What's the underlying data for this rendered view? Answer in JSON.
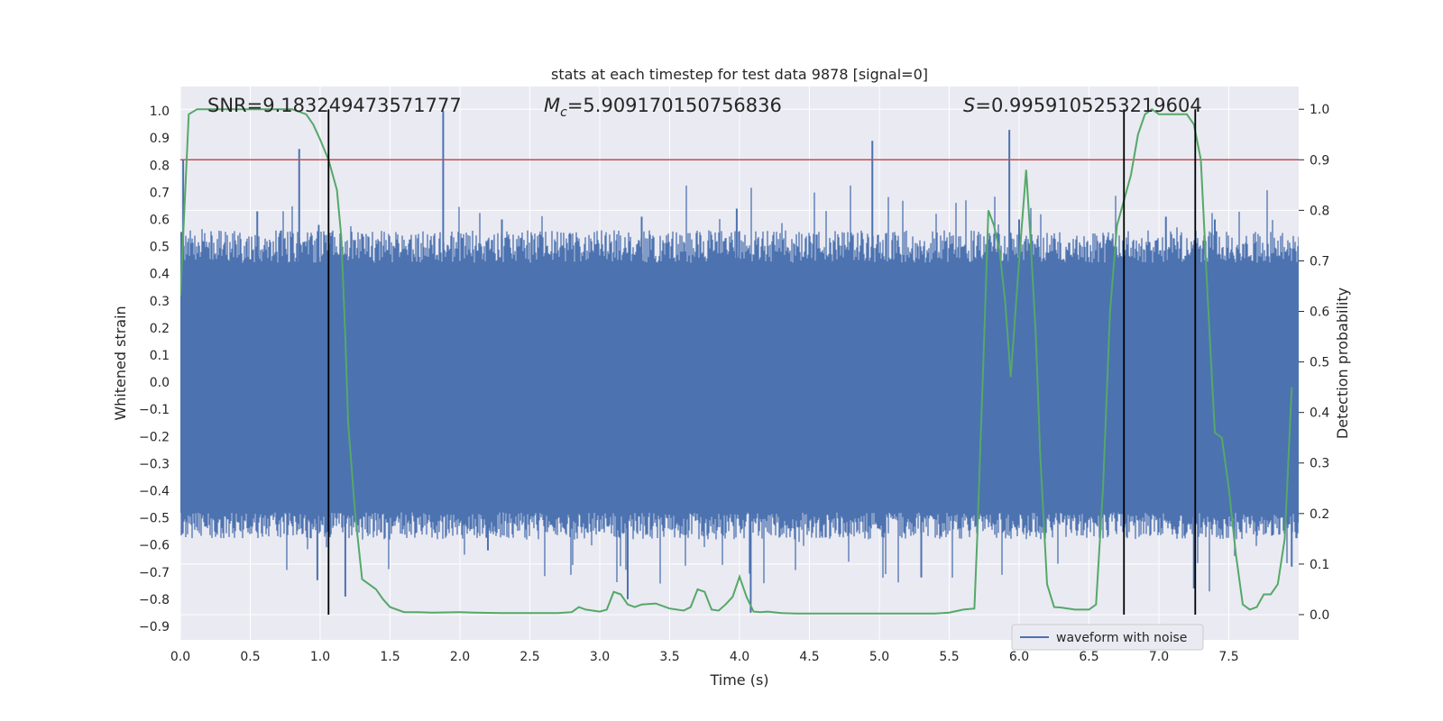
{
  "chart_data": {
    "type": "line",
    "title": "stats at each timestep for test data 9878 [signal=0]",
    "xlabel": "Time (s)",
    "ylabel": "Whitened strain",
    "ylabel_right": "Detection probability",
    "xlim": [
      0.0,
      8.0
    ],
    "ylim": [
      -0.95,
      1.09
    ],
    "ylim_right": [
      -0.05,
      1.045
    ],
    "x_ticks": [
      "0.0",
      "0.5",
      "1.0",
      "1.5",
      "2.0",
      "2.5",
      "3.0",
      "3.5",
      "4.0",
      "4.5",
      "5.0",
      "5.5",
      "6.0",
      "6.5",
      "7.0",
      "7.5"
    ],
    "y_ticks": [
      "1.0",
      "0.9",
      "0.8",
      "0.7",
      "0.6",
      "0.5",
      "0.4",
      "0.3",
      "0.2",
      "0.1",
      "0.0",
      "-0.1",
      "-0.2",
      "-0.3",
      "-0.4",
      "-0.5",
      "-0.6",
      "-0.7",
      "-0.8",
      "-0.9"
    ],
    "y_ticks_right": [
      "1.0",
      "0.9",
      "0.8",
      "0.7",
      "0.6",
      "0.5",
      "0.4",
      "0.3",
      "0.2",
      "0.1",
      "0.0"
    ],
    "annotations": {
      "snr": "SNR=9.183249473571777",
      "mc_symbol": "M",
      "mc_sub": "c",
      "mc_value": "=5.909170150756836",
      "s_symbol": "S",
      "s_value": "=0.9959105253219604"
    },
    "legend": {
      "label": "waveform with noise",
      "loc": "lower right"
    },
    "grid": true,
    "threshold_y": 0.9,
    "markers_x": [
      1.06,
      6.75,
      7.26
    ],
    "series": [
      {
        "name": "waveform with noise",
        "axis": "left",
        "style": "dense-noise",
        "envelope": 0.44,
        "peaks": [
          [
            0.02,
            0.82
          ],
          [
            0.55,
            0.63
          ],
          [
            0.85,
            0.86
          ],
          [
            0.99,
            0.58
          ],
          [
            1.88,
            1.0
          ],
          [
            2.3,
            0.6
          ],
          [
            3.3,
            0.61
          ],
          [
            3.98,
            0.64
          ],
          [
            4.95,
            0.89
          ],
          [
            5.93,
            0.93
          ],
          [
            6.0,
            0.6
          ],
          [
            7.05,
            0.61
          ],
          [
            7.4,
            0.6
          ],
          [
            0.98,
            -0.73
          ],
          [
            1.18,
            -0.79
          ],
          [
            2.2,
            -0.62
          ],
          [
            3.2,
            -0.8
          ],
          [
            4.08,
            -0.85
          ],
          [
            5.3,
            -0.72
          ],
          [
            7.25,
            -0.76
          ],
          [
            7.95,
            -0.68
          ]
        ]
      },
      {
        "name": "",
        "axis": "right",
        "color": "#55a868",
        "x": [
          0.0,
          0.06,
          0.12,
          0.2,
          0.3,
          0.4,
          0.5,
          0.6,
          0.7,
          0.8,
          0.9,
          0.95,
          1.0,
          1.06,
          1.1,
          1.12,
          1.15,
          1.18,
          1.2,
          1.25,
          1.3,
          1.35,
          1.4,
          1.45,
          1.5,
          1.6,
          1.7,
          1.8,
          2.0,
          2.1,
          2.3,
          2.5,
          2.7,
          2.8,
          2.85,
          2.9,
          2.95,
          3.0,
          3.05,
          3.1,
          3.15,
          3.2,
          3.25,
          3.3,
          3.4,
          3.5,
          3.6,
          3.65,
          3.7,
          3.75,
          3.8,
          3.85,
          3.9,
          3.95,
          4.0,
          4.05,
          4.1,
          4.15,
          4.2,
          4.3,
          4.4,
          4.6,
          4.8,
          5.0,
          5.2,
          5.4,
          5.5,
          5.6,
          5.68,
          5.7,
          5.75,
          5.78,
          5.82,
          5.86,
          5.9,
          5.94,
          6.0,
          6.05,
          6.08,
          6.12,
          6.15,
          6.2,
          6.25,
          6.3,
          6.4,
          6.5,
          6.55,
          6.6,
          6.65,
          6.7,
          6.75,
          6.8,
          6.85,
          6.9,
          6.95,
          7.0,
          7.1,
          7.2,
          7.25,
          7.3,
          7.35,
          7.4,
          7.45,
          7.5,
          7.55,
          7.6,
          7.65,
          7.7,
          7.75,
          7.8,
          7.85,
          7.9,
          7.95
        ],
        "y": [
          0.63,
          0.99,
          1.0,
          1.0,
          1.0,
          1.0,
          1.0,
          1.0,
          1.0,
          1.0,
          0.99,
          0.97,
          0.94,
          0.9,
          0.86,
          0.84,
          0.75,
          0.55,
          0.38,
          0.2,
          0.07,
          0.06,
          0.05,
          0.03,
          0.015,
          0.005,
          0.005,
          0.004,
          0.005,
          0.004,
          0.003,
          0.003,
          0.003,
          0.005,
          0.015,
          0.01,
          0.008,
          0.006,
          0.01,
          0.045,
          0.04,
          0.02,
          0.015,
          0.02,
          0.022,
          0.012,
          0.008,
          0.015,
          0.05,
          0.045,
          0.01,
          0.008,
          0.02,
          0.035,
          0.075,
          0.035,
          0.006,
          0.005,
          0.006,
          0.003,
          0.002,
          0.002,
          0.002,
          0.002,
          0.002,
          0.002,
          0.004,
          0.01,
          0.012,
          0.15,
          0.55,
          0.8,
          0.77,
          0.72,
          0.62,
          0.47,
          0.7,
          0.88,
          0.75,
          0.55,
          0.32,
          0.06,
          0.015,
          0.014,
          0.01,
          0.01,
          0.02,
          0.25,
          0.6,
          0.77,
          0.82,
          0.87,
          0.95,
          0.99,
          1.0,
          0.99,
          0.99,
          0.99,
          0.97,
          0.9,
          0.62,
          0.36,
          0.35,
          0.25,
          0.12,
          0.02,
          0.01,
          0.015,
          0.04,
          0.04,
          0.06,
          0.15,
          0.45
        ]
      }
    ]
  },
  "colors": {
    "background": "#eaeaf2",
    "grid": "#ffffff",
    "waveform": "#4c72b0",
    "probability": "#55a868",
    "threshold": "#c44e52",
    "markers": "#000000",
    "text": "#262626"
  }
}
